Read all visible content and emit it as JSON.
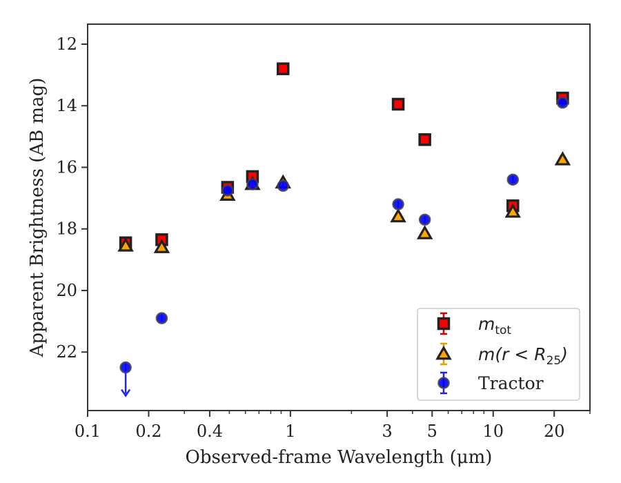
{
  "chart_data": {
    "type": "scatter",
    "xlabel": "Observed-frame Wavelength (μm)",
    "ylabel": "Apparent Brightness (AB mag)",
    "xscale": "log",
    "xlim": [
      0.1,
      30
    ],
    "ylim": [
      23.9,
      11.35
    ],
    "y_inverted": true,
    "x_ticks": [
      0.1,
      0.2,
      0.4,
      1,
      3,
      5,
      10,
      20
    ],
    "x_tick_labels": [
      "0.1",
      "0.2",
      "0.4",
      "1",
      "3",
      "5",
      "10",
      "20"
    ],
    "y_ticks": [
      12,
      14,
      16,
      18,
      20,
      22
    ],
    "y_tick_labels": [
      "12",
      "14",
      "16",
      "18",
      "20",
      "22"
    ],
    "legend_position": "lower-right",
    "series": [
      {
        "name": "m_tot",
        "legend_main": "m",
        "legend_sub": "tot",
        "marker": "square",
        "fill": "#ff0000",
        "error_color": "#d40000",
        "x": [
          0.154,
          0.232,
          0.49,
          0.65,
          0.92,
          3.4,
          4.6,
          12.5,
          22.0
        ],
        "y": [
          18.45,
          18.35,
          16.65,
          16.3,
          12.8,
          13.95,
          15.1,
          17.25,
          13.75
        ]
      },
      {
        "name": "m(r < R25)",
        "legend_main": "m(r < R",
        "legend_sub": "25",
        "legend_tail": ")",
        "marker": "triangle",
        "fill": "#ffa500",
        "error_color": "#e0a000",
        "x": [
          0.154,
          0.232,
          0.49,
          0.65,
          0.92,
          3.4,
          4.6,
          12.5,
          22.0
        ],
        "y": [
          18.55,
          18.6,
          16.9,
          16.55,
          16.5,
          17.6,
          18.15,
          17.45,
          15.75
        ]
      },
      {
        "name": "Tractor",
        "marker": "circle",
        "fill": "#0000ff",
        "error_color": "#2222ee",
        "x": [
          0.154,
          0.232,
          0.49,
          0.65,
          0.92,
          3.4,
          4.6,
          12.5,
          22.0
        ],
        "y": [
          22.5,
          20.9,
          16.75,
          16.55,
          16.6,
          17.2,
          17.7,
          16.4,
          13.9
        ],
        "upper_limit_index": 0,
        "upper_limit_color": "#2222ee"
      }
    ]
  }
}
